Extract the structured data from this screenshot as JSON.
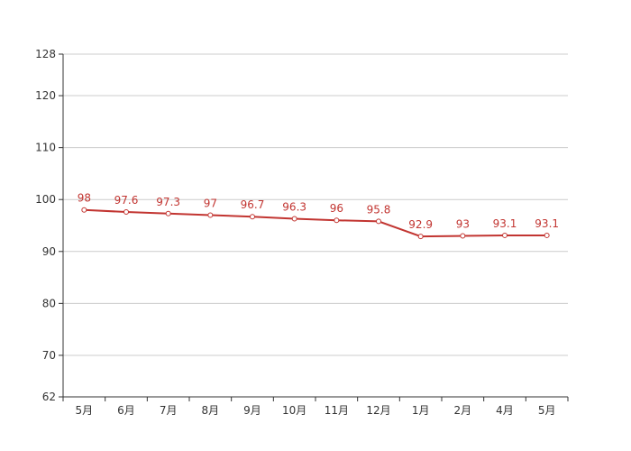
{
  "chart_data": {
    "type": "line",
    "title": "",
    "xlabel": "",
    "ylabel": "",
    "categories": [
      "5月",
      "6月",
      "7月",
      "8月",
      "9月",
      "10月",
      "11月",
      "12月",
      "1月",
      "2月",
      "4月",
      "5月"
    ],
    "series": [
      {
        "values": [
          98,
          97.6,
          97.3,
          97,
          96.7,
          96.3,
          96,
          95.8,
          92.9,
          93,
          93.1,
          93.1
        ],
        "labels": [
          "98",
          "97.6",
          "97.3",
          "97",
          "96.7",
          "96.3",
          "96",
          "95.8",
          "92.9",
          "93",
          "93.1",
          "93.1"
        ]
      }
    ],
    "ylim": [
      62,
      128
    ],
    "yticks": [
      62,
      70,
      80,
      90,
      100,
      110,
      120,
      128
    ],
    "ytick_labels": [
      "62",
      "70",
      "80",
      "90",
      "100",
      "110",
      "120",
      "128"
    ],
    "grid": true,
    "line_color": "#c23531",
    "label_color": "#c23531"
  }
}
